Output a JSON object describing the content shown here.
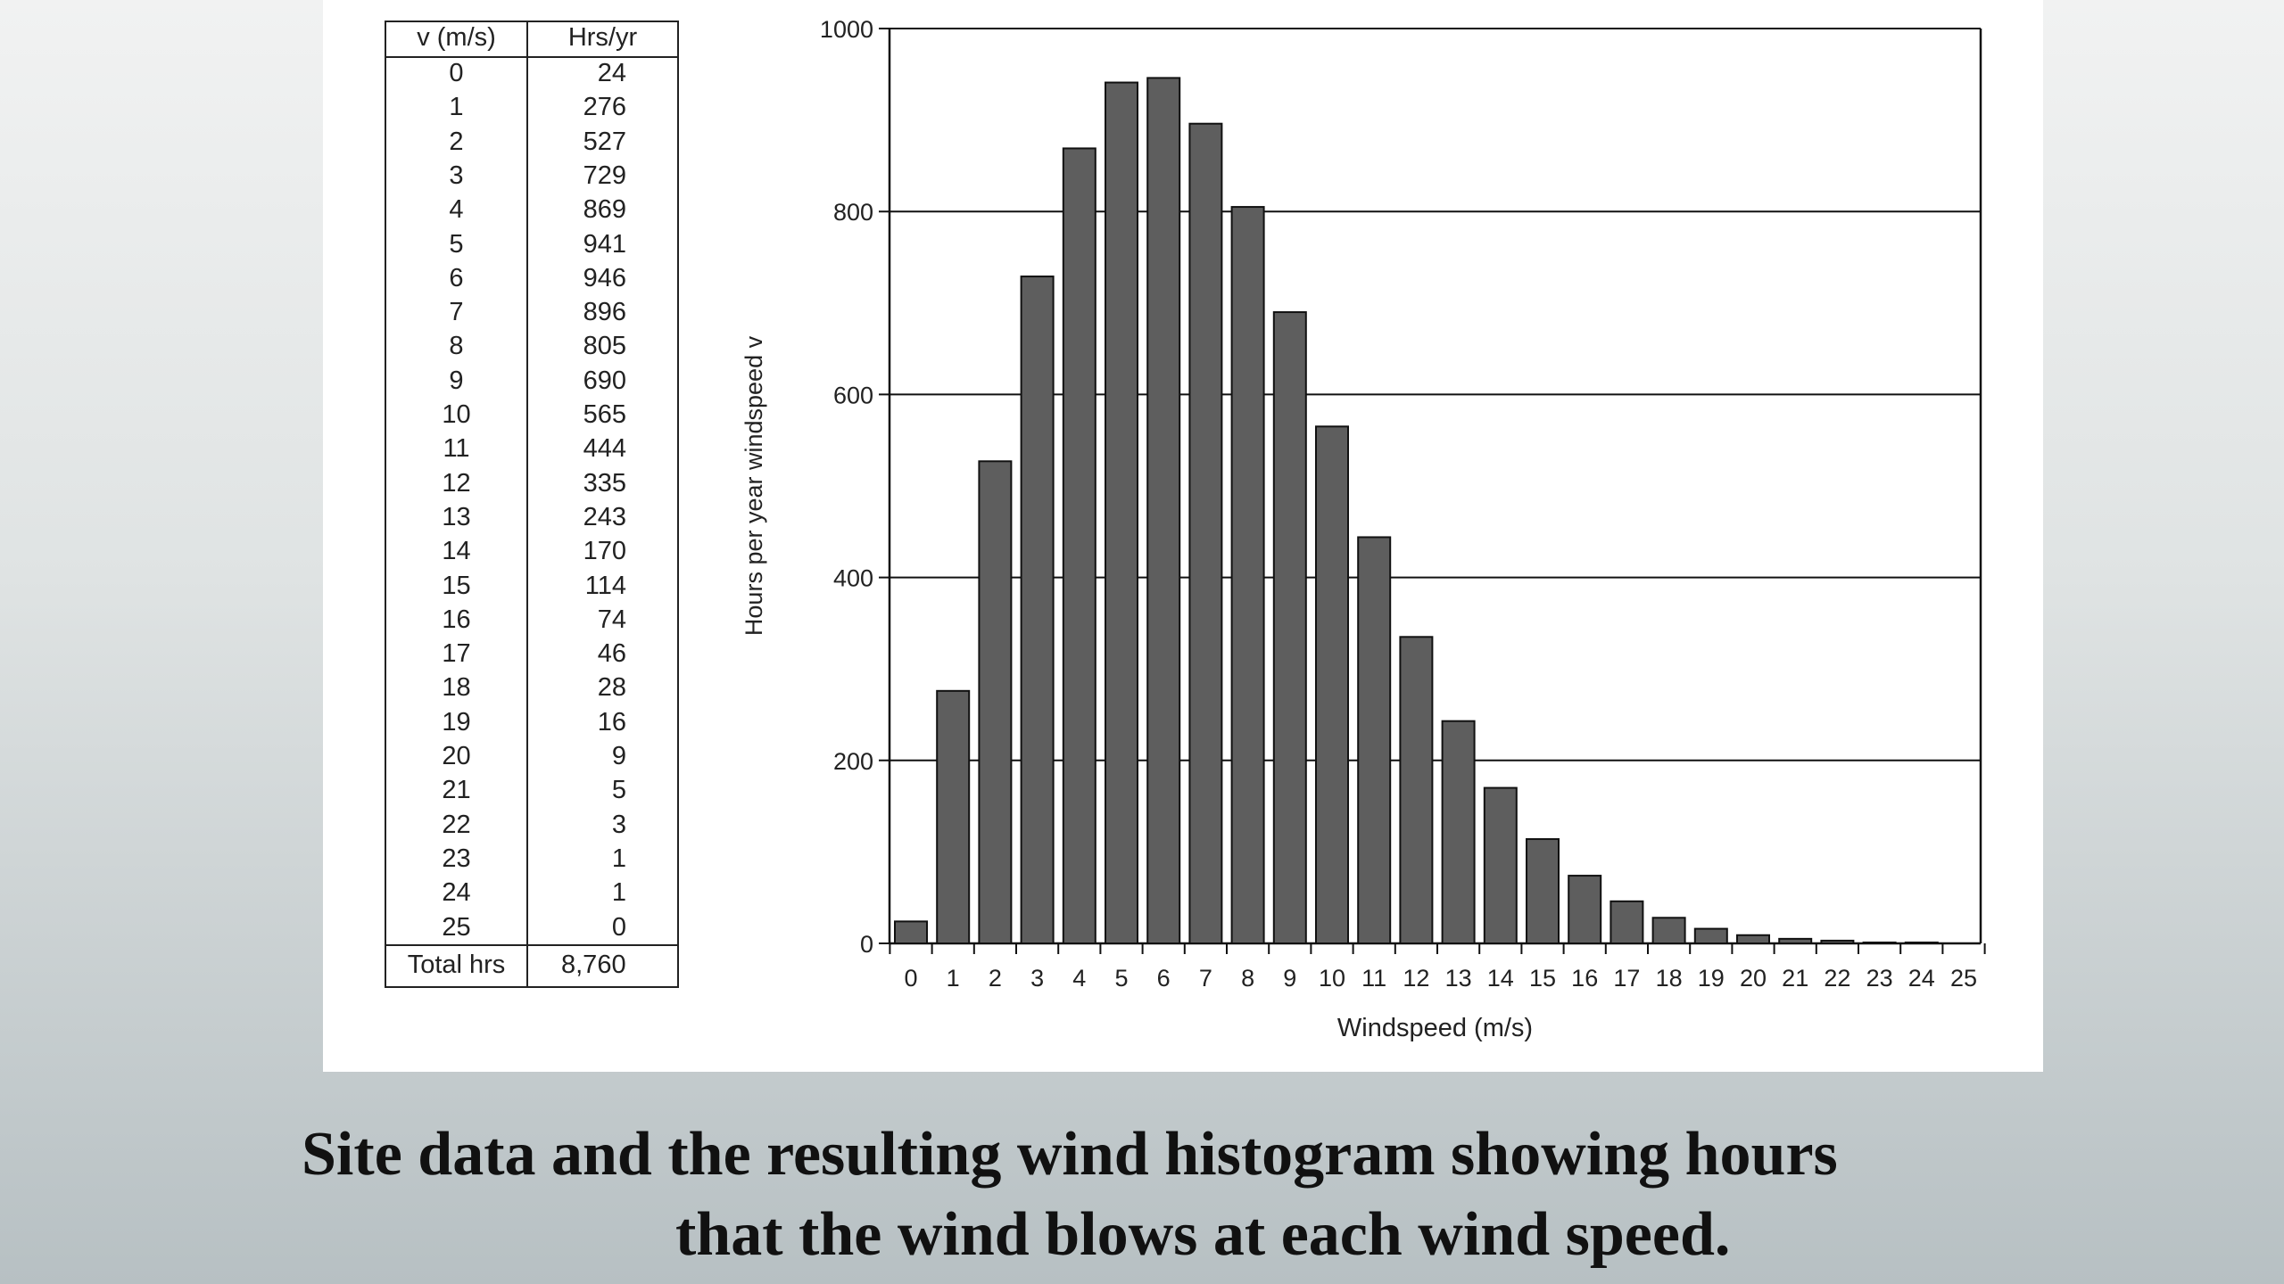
{
  "table": {
    "headers": [
      "v (m/s)",
      "Hrs/yr"
    ],
    "rows": [
      [
        "0",
        "24"
      ],
      [
        "1",
        "276"
      ],
      [
        "2",
        "527"
      ],
      [
        "3",
        "729"
      ],
      [
        "4",
        "869"
      ],
      [
        "5",
        "941"
      ],
      [
        "6",
        "946"
      ],
      [
        "7",
        "896"
      ],
      [
        "8",
        "805"
      ],
      [
        "9",
        "690"
      ],
      [
        "10",
        "565"
      ],
      [
        "11",
        "444"
      ],
      [
        "12",
        "335"
      ],
      [
        "13",
        "243"
      ],
      [
        "14",
        "170"
      ],
      [
        "15",
        "114"
      ],
      [
        "16",
        "74"
      ],
      [
        "17",
        "46"
      ],
      [
        "18",
        "28"
      ],
      [
        "19",
        "16"
      ],
      [
        "20",
        "9"
      ],
      [
        "21",
        "5"
      ],
      [
        "22",
        "3"
      ],
      [
        "23",
        "1"
      ],
      [
        "24",
        "1"
      ],
      [
        "25",
        "0"
      ]
    ],
    "total": [
      "Total hrs",
      "8,760"
    ]
  },
  "chart_data": {
    "type": "bar",
    "categories": [
      "0",
      "1",
      "2",
      "3",
      "4",
      "5",
      "6",
      "7",
      "8",
      "9",
      "10",
      "11",
      "12",
      "13",
      "14",
      "15",
      "16",
      "17",
      "18",
      "19",
      "20",
      "21",
      "22",
      "23",
      "24",
      "25"
    ],
    "values": [
      24,
      276,
      527,
      729,
      869,
      941,
      946,
      896,
      805,
      690,
      565,
      444,
      335,
      243,
      170,
      114,
      74,
      46,
      28,
      16,
      9,
      5,
      3,
      1,
      1,
      0
    ],
    "xlabel": "Windspeed (m/s)",
    "ylabel": "Hours per year windspeed v",
    "ylim": [
      0,
      1000
    ],
    "yticks": [
      "0",
      "200",
      "400",
      "600",
      "800",
      "1000"
    ],
    "grid": "horizontal",
    "bar_color": "#5e5e5e"
  },
  "caption": {
    "line1": "Site data and the resulting wind histogram showing hours",
    "line2": "that the wind blows at each wind speed."
  }
}
